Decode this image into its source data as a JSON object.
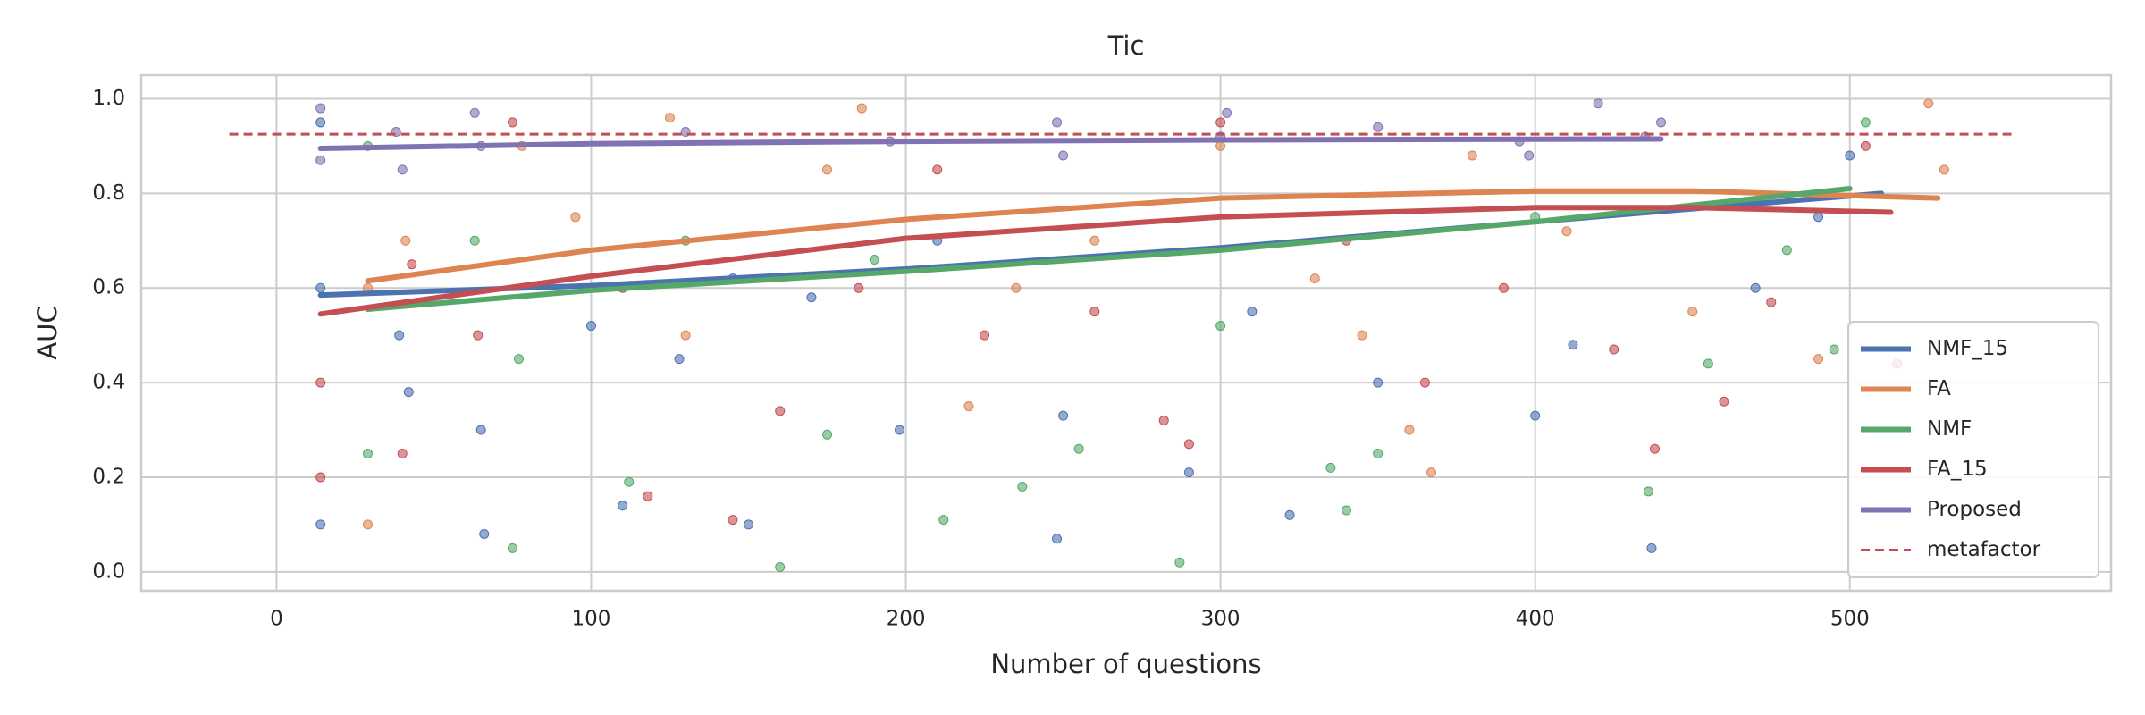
{
  "chart_data": {
    "type": "scatter_trend",
    "title": "Tic",
    "xlabel": "Number of questions",
    "ylabel": "AUC",
    "xlim": [
      -43,
      583
    ],
    "ylim": [
      -0.04,
      1.05
    ],
    "xticks": [
      0,
      100,
      200,
      300,
      400,
      500
    ],
    "yticks": [
      {
        "value": 0,
        "label": "0.0"
      },
      0.2,
      0.4,
      0.6,
      0.8,
      {
        "value": 1,
        "label": "1.0"
      }
    ],
    "grid": true,
    "legend": "lower right",
    "series": [
      {
        "name": "NMF_15",
        "color": "#4c72b0",
        "trend_x": [
          14,
          100,
          200,
          300,
          400,
          510
        ],
        "trend_y": [
          0.585,
          0.605,
          0.64,
          0.685,
          0.74,
          0.8
        ],
        "x": [
          14,
          14,
          14,
          39,
          42,
          65,
          66,
          100,
          110,
          128,
          145,
          150,
          170,
          198,
          210,
          248,
          250,
          290,
          310,
          322,
          350,
          400,
          412,
          437,
          470,
          490,
          500
        ],
        "y": [
          0.95,
          0.1,
          0.6,
          0.5,
          0.38,
          0.3,
          0.08,
          0.52,
          0.14,
          0.45,
          0.62,
          0.1,
          0.58,
          0.3,
          0.7,
          0.07,
          0.33,
          0.21,
          0.55,
          0.12,
          0.4,
          0.33,
          0.48,
          0.05,
          0.6,
          0.75,
          0.88
        ]
      },
      {
        "name": "FA",
        "color": "#dd8452",
        "trend_x": [
          29,
          100,
          200,
          300,
          400,
          450,
          528
        ],
        "trend_y": [
          0.615,
          0.68,
          0.745,
          0.79,
          0.805,
          0.805,
          0.79
        ],
        "x": [
          29,
          29,
          41,
          78,
          95,
          125,
          130,
          175,
          186,
          220,
          235,
          260,
          300,
          330,
          345,
          360,
          367,
          380,
          410,
          450,
          490,
          525,
          530
        ],
        "y": [
          0.1,
          0.6,
          0.7,
          0.9,
          0.75,
          0.96,
          0.5,
          0.85,
          0.98,
          0.35,
          0.6,
          0.7,
          0.9,
          0.62,
          0.5,
          0.3,
          0.21,
          0.88,
          0.72,
          0.55,
          0.45,
          0.99,
          0.85
        ]
      },
      {
        "name": "NMF",
        "color": "#55a868",
        "trend_x": [
          29,
          100,
          200,
          300,
          400,
          500
        ],
        "trend_y": [
          0.555,
          0.595,
          0.635,
          0.68,
          0.74,
          0.81
        ],
        "x": [
          29,
          29,
          63,
          75,
          77,
          112,
          130,
          160,
          175,
          190,
          212,
          237,
          255,
          287,
          300,
          335,
          340,
          350,
          400,
          436,
          455,
          480,
          495,
          505
        ],
        "y": [
          0.25,
          0.9,
          0.7,
          0.05,
          0.45,
          0.19,
          0.7,
          0.01,
          0.29,
          0.66,
          0.11,
          0.18,
          0.26,
          0.02,
          0.52,
          0.22,
          0.13,
          0.25,
          0.75,
          0.17,
          0.44,
          0.68,
          0.47,
          0.95
        ]
      },
      {
        "name": "FA_15",
        "color": "#c44e52",
        "trend_x": [
          14,
          100,
          200,
          300,
          400,
          450,
          513
        ],
        "trend_y": [
          0.545,
          0.625,
          0.705,
          0.75,
          0.77,
          0.77,
          0.76
        ],
        "x": [
          14,
          14,
          40,
          43,
          64,
          75,
          110,
          118,
          145,
          160,
          185,
          210,
          225,
          260,
          282,
          290,
          300,
          340,
          365,
          390,
          425,
          438,
          460,
          475,
          505,
          515
        ],
        "y": [
          0.2,
          0.4,
          0.25,
          0.65,
          0.5,
          0.95,
          0.6,
          0.16,
          0.11,
          0.34,
          0.6,
          0.85,
          0.5,
          0.55,
          0.32,
          0.27,
          0.95,
          0.7,
          0.4,
          0.6,
          0.47,
          0.26,
          0.36,
          0.57,
          0.9,
          0.44
        ]
      },
      {
        "name": "Proposed",
        "color": "#8172b3",
        "trend_x": [
          14,
          100,
          200,
          300,
          440
        ],
        "trend_y": [
          0.895,
          0.905,
          0.91,
          0.913,
          0.915
        ],
        "x": [
          14,
          14,
          38,
          40,
          63,
          65,
          130,
          195,
          248,
          250,
          300,
          302,
          350,
          395,
          398,
          420,
          435,
          440
        ],
        "y": [
          0.98,
          0.87,
          0.93,
          0.85,
          0.97,
          0.9,
          0.93,
          0.91,
          0.95,
          0.88,
          0.92,
          0.97,
          0.94,
          0.91,
          0.88,
          0.99,
          0.92,
          0.95
        ]
      }
    ],
    "reference_line": {
      "name": "metafactor",
      "color": "#c44e52",
      "x": [
        -15,
        553
      ],
      "y": [
        0.925,
        0.925
      ]
    }
  }
}
